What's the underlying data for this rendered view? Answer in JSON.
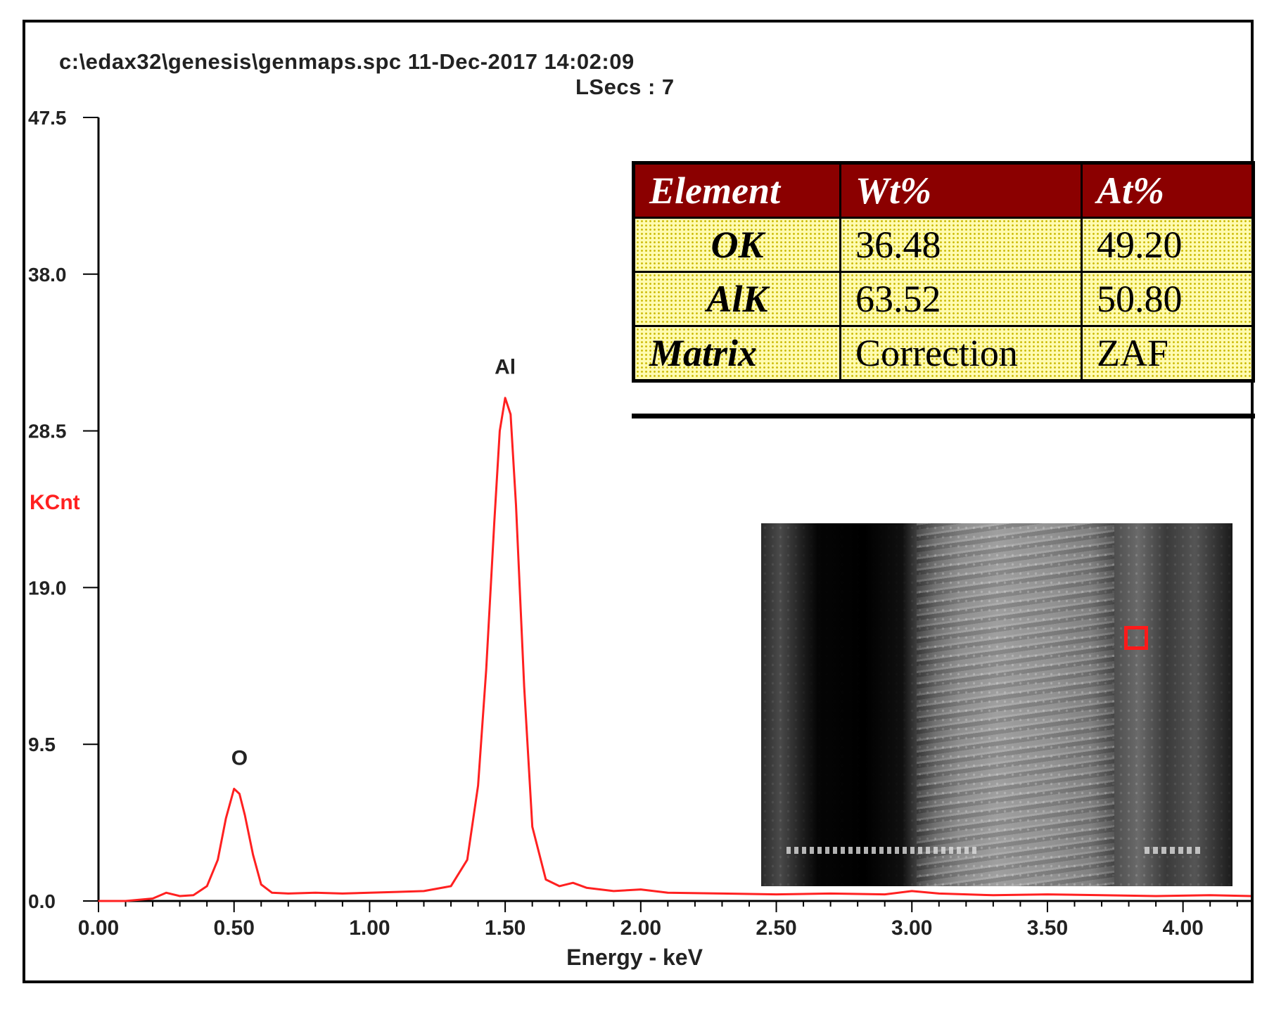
{
  "header": {
    "file_line": "c:\\edax32\\genesis\\genmaps.spc  11-Dec-2017 14:02:09",
    "lsecs_line": "LSecs :  7"
  },
  "chart_data": {
    "type": "line",
    "xlabel": "Energy - keV",
    "ylabel": "KCnt",
    "xlim": [
      0.0,
      4.25
    ],
    "ylim": [
      0.0,
      47.5
    ],
    "x_ticks": [
      "0.00",
      "0.50",
      "1.00",
      "1.50",
      "2.00",
      "2.50",
      "3.00",
      "3.50",
      "4.00"
    ],
    "y_ticks": [
      "0.0",
      "9.5",
      "19.0",
      "28.5",
      "38.0",
      "47.5"
    ],
    "grid": false,
    "series": [
      {
        "color": "#ff2020",
        "x": [
          0.0,
          0.1,
          0.2,
          0.25,
          0.3,
          0.35,
          0.4,
          0.44,
          0.47,
          0.5,
          0.52,
          0.54,
          0.57,
          0.6,
          0.64,
          0.7,
          0.8,
          0.9,
          1.0,
          1.1,
          1.2,
          1.3,
          1.36,
          1.4,
          1.43,
          1.46,
          1.48,
          1.5,
          1.52,
          1.54,
          1.57,
          1.6,
          1.65,
          1.7,
          1.75,
          1.8,
          1.9,
          2.0,
          2.1,
          2.3,
          2.5,
          2.7,
          2.9,
          3.0,
          3.1,
          3.3,
          3.5,
          3.7,
          3.9,
          4.1,
          4.25
        ],
        "y": [
          0.0,
          0.0,
          0.15,
          0.5,
          0.3,
          0.35,
          0.9,
          2.5,
          5.0,
          6.8,
          6.5,
          5.2,
          2.8,
          1.0,
          0.5,
          0.45,
          0.5,
          0.45,
          0.5,
          0.55,
          0.6,
          0.9,
          2.5,
          7.0,
          14.0,
          23.0,
          28.5,
          30.5,
          29.5,
          24.0,
          13.0,
          4.5,
          1.3,
          0.9,
          1.1,
          0.8,
          0.6,
          0.7,
          0.5,
          0.45,
          0.4,
          0.45,
          0.4,
          0.6,
          0.45,
          0.35,
          0.4,
          0.35,
          0.3,
          0.35,
          0.3
        ]
      }
    ],
    "annotations": [
      {
        "text": "O",
        "x": 0.52,
        "y": 6.8
      },
      {
        "text": "Al",
        "x": 1.5,
        "y": 30.5
      }
    ]
  },
  "result_table": {
    "headers": [
      "Element",
      "Wt%",
      "At%"
    ],
    "rows": [
      [
        "OK",
        "36.48",
        "49.20"
      ],
      [
        "AlK",
        "63.52",
        "50.80"
      ],
      [
        "Matrix",
        "Correction",
        "ZAF"
      ]
    ]
  },
  "colors": {
    "spectrum": "#ff2020",
    "ylabel": "#ff2020",
    "table_header": "#8b0000",
    "table_cell": "#fffbb0",
    "sem_marker": "#ff1a1a"
  }
}
